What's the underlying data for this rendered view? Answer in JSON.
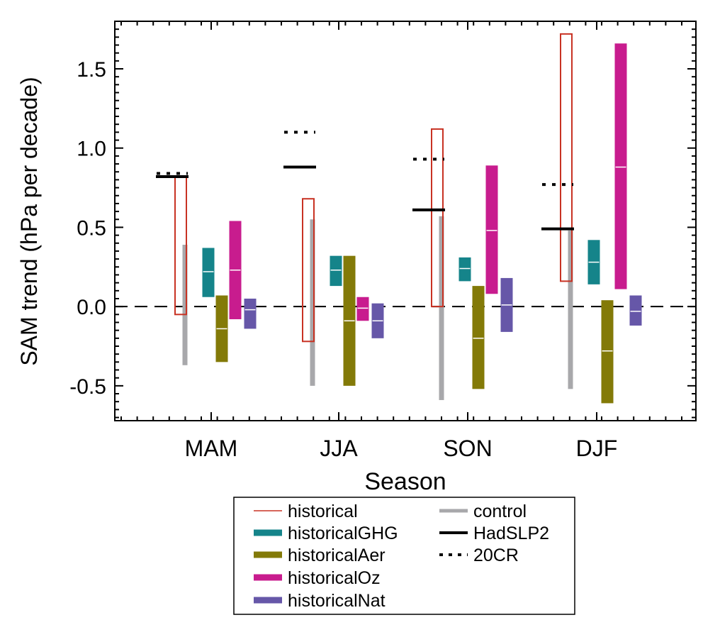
{
  "chart_data": {
    "type": "box",
    "xlabel": "Season",
    "ylabel": "SAM trend (hPa per decade)",
    "categories": [
      "MAM",
      "JJA",
      "SON",
      "DJF"
    ],
    "ylim": [
      -0.72,
      1.8
    ],
    "yticks": [
      -0.5,
      0.0,
      0.5,
      1.0,
      1.5
    ],
    "ytick_labels": [
      "-0.5",
      "0.0",
      "0.5",
      "1.0",
      "1.5"
    ],
    "zero_line": 0.0,
    "grid": false,
    "legend_position": "bottom",
    "series": [
      {
        "name": "historical",
        "style": "outline-box",
        "color": "#c83223",
        "values": [
          {
            "low": -0.05,
            "high": 0.82
          },
          {
            "low": -0.22,
            "high": 0.68
          },
          {
            "low": 0.0,
            "high": 1.12
          },
          {
            "low": 0.16,
            "high": 1.72
          }
        ]
      },
      {
        "name": "historicalGHG",
        "style": "filled-box",
        "color": "#15848a",
        "values": [
          {
            "low": 0.06,
            "high": 0.37,
            "median": 0.22
          },
          {
            "low": 0.13,
            "high": 0.32,
            "median": 0.23
          },
          {
            "low": 0.16,
            "high": 0.31,
            "median": 0.24
          },
          {
            "low": 0.14,
            "high": 0.42,
            "median": 0.28
          }
        ]
      },
      {
        "name": "historicalAer",
        "style": "filled-box",
        "color": "#837a08",
        "values": [
          {
            "low": -0.35,
            "high": 0.07,
            "median": -0.14
          },
          {
            "low": -0.5,
            "high": 0.32,
            "median": -0.09
          },
          {
            "low": -0.52,
            "high": 0.13,
            "median": -0.2
          },
          {
            "low": -0.61,
            "high": 0.04,
            "median": -0.28
          }
        ]
      },
      {
        "name": "historicalOz",
        "style": "filled-box",
        "color": "#c81c8e",
        "values": [
          {
            "low": -0.08,
            "high": 0.54,
            "median": 0.23
          },
          {
            "low": -0.09,
            "high": 0.06,
            "median": -0.01
          },
          {
            "low": 0.08,
            "high": 0.89,
            "median": 0.48
          },
          {
            "low": 0.11,
            "high": 1.66,
            "median": 0.88
          }
        ]
      },
      {
        "name": "historicalNat",
        "style": "filled-box",
        "color": "#6657a8",
        "values": [
          {
            "low": -0.14,
            "high": 0.05,
            "median": -0.02
          },
          {
            "low": -0.2,
            "high": 0.02,
            "median": -0.09
          },
          {
            "low": -0.16,
            "high": 0.18,
            "median": 0.01
          },
          {
            "low": -0.12,
            "high": 0.07,
            "median": -0.03
          }
        ]
      },
      {
        "name": "control",
        "style": "thin-bar",
        "color": "#a8a8ab",
        "values": [
          {
            "low": -0.37,
            "high": 0.39
          },
          {
            "low": -0.5,
            "high": 0.55
          },
          {
            "low": -0.59,
            "high": 0.57
          },
          {
            "low": -0.52,
            "high": 0.48
          }
        ]
      },
      {
        "name": "HadSLP2",
        "style": "solid-line",
        "color": "#000000",
        "values": [
          0.82,
          0.88,
          0.61,
          0.49
        ]
      },
      {
        "name": "20CR",
        "style": "dotted-line",
        "color": "#000000",
        "values": [
          0.84,
          1.1,
          0.93,
          0.77
        ]
      }
    ],
    "legend_entries": [
      "historical",
      "historicalGHG",
      "historicalAer",
      "historicalOz",
      "historicalNat",
      "control",
      "HadSLP2",
      "20CR"
    ]
  }
}
